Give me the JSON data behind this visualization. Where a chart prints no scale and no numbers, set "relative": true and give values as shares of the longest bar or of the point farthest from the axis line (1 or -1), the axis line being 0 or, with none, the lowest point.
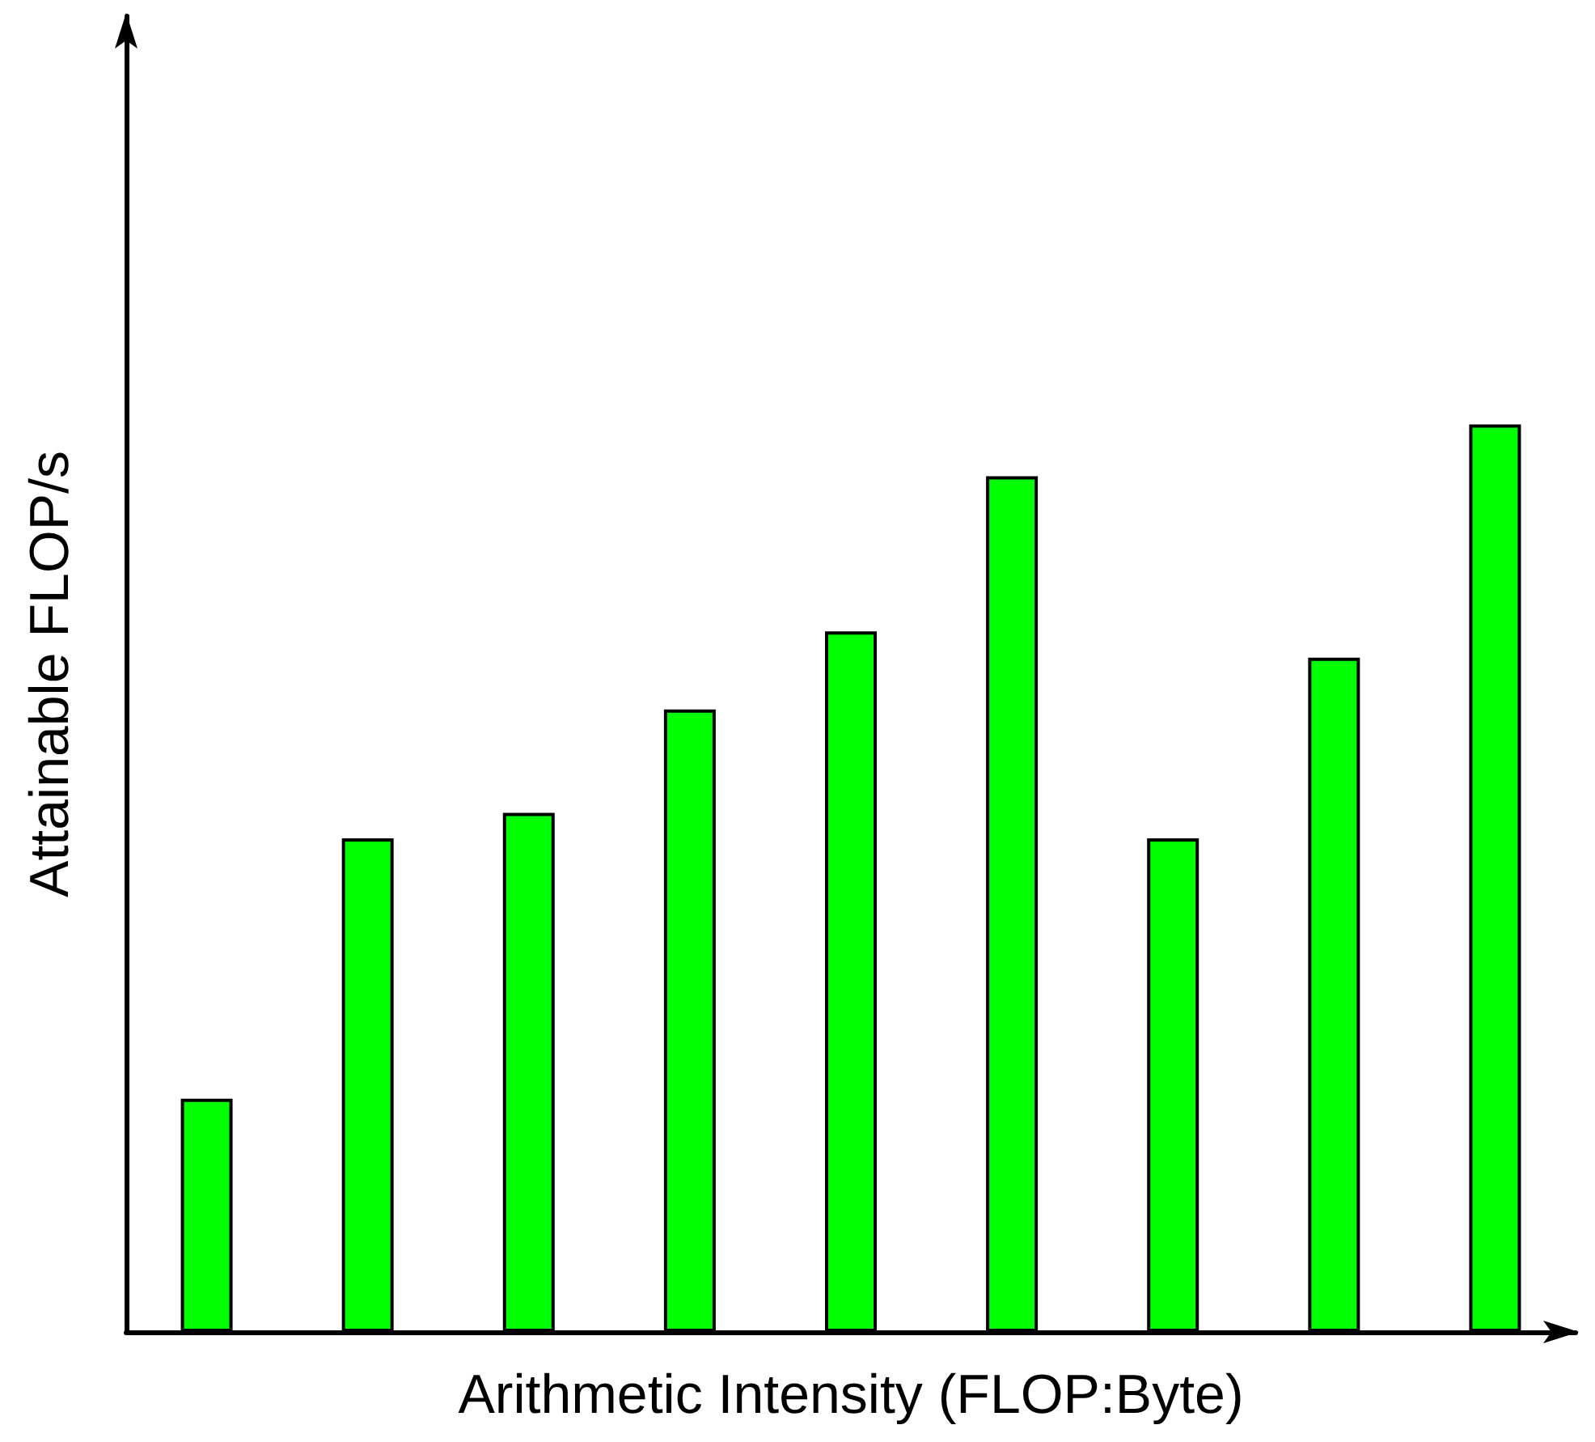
{
  "chart_data": {
    "type": "bar",
    "relative": true,
    "xlabel": "Arithmetic Intensity (FLOP:Byte)",
    "ylabel": "Attainable FLOP/s",
    "color": "#00ff00",
    "categories": [
      null,
      null,
      null,
      null,
      null,
      null,
      null,
      null,
      null
    ],
    "values": [
      0.257,
      0.544,
      0.572,
      0.686,
      0.772,
      0.943,
      0.544,
      0.743,
      1
    ]
  }
}
